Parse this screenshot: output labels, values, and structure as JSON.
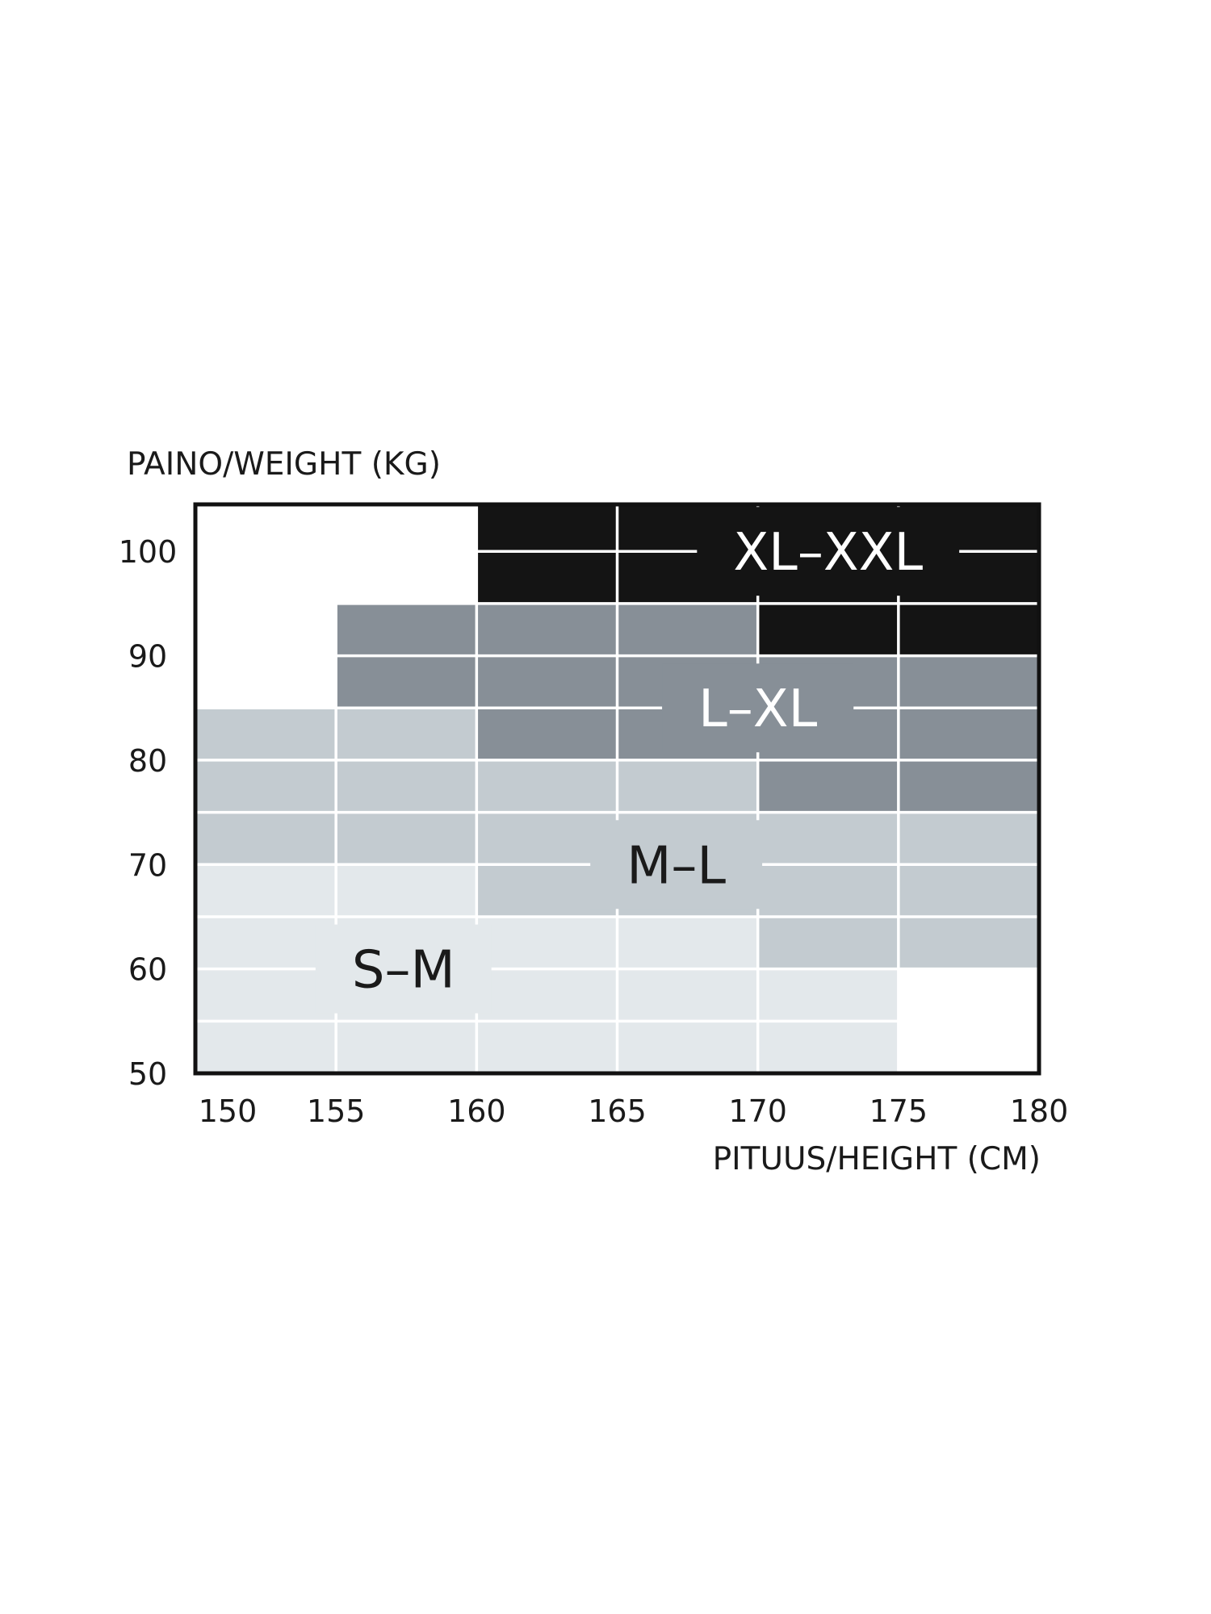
{
  "chart_data": {
    "type": "heatmap",
    "xlabel": "PITUUS/HEIGHT (CM)",
    "ylabel": "PAINO/WEIGHT (KG)",
    "xlim": [
      150,
      180
    ],
    "ylim": [
      50,
      104.5
    ],
    "x_ticks": [
      "150",
      "155",
      "160",
      "165",
      "170",
      "175",
      "180"
    ],
    "y_ticks": [
      "50",
      "60",
      "70",
      "80",
      "90",
      "100"
    ],
    "grid": true,
    "sizes": [
      {
        "name": "S–M",
        "color": "#e3e8eb",
        "text_color": "#1a1a1a",
        "label_at": [
          157.4,
          60
        ],
        "regions": [
          [
            150,
            160,
            50,
            70
          ],
          [
            160,
            170,
            50,
            65
          ],
          [
            170,
            175,
            50,
            60
          ]
        ]
      },
      {
        "name": "M–L",
        "color": "#c3cbd0",
        "text_color": "#1a1a1a",
        "label_at": [
          167.1,
          70
        ],
        "regions": [
          [
            150,
            160,
            70,
            85
          ],
          [
            160,
            170,
            65,
            80
          ],
          [
            170,
            180,
            60,
            75
          ]
        ]
      },
      {
        "name": "L–XL",
        "color": "#878f97",
        "text_color": "#ffffff",
        "label_at": [
          170,
          85
        ],
        "regions": [
          [
            155,
            160,
            85,
            95
          ],
          [
            160,
            170,
            80,
            95
          ],
          [
            170,
            180,
            75,
            90
          ]
        ]
      },
      {
        "name": "XL–XXL",
        "color": "#141414",
        "text_color": "#ffffff",
        "label_at": [
          172.5,
          100
        ],
        "regions": [
          [
            160,
            170,
            95,
            104.5
          ],
          [
            170,
            180,
            90,
            104.5
          ]
        ]
      }
    ]
  }
}
